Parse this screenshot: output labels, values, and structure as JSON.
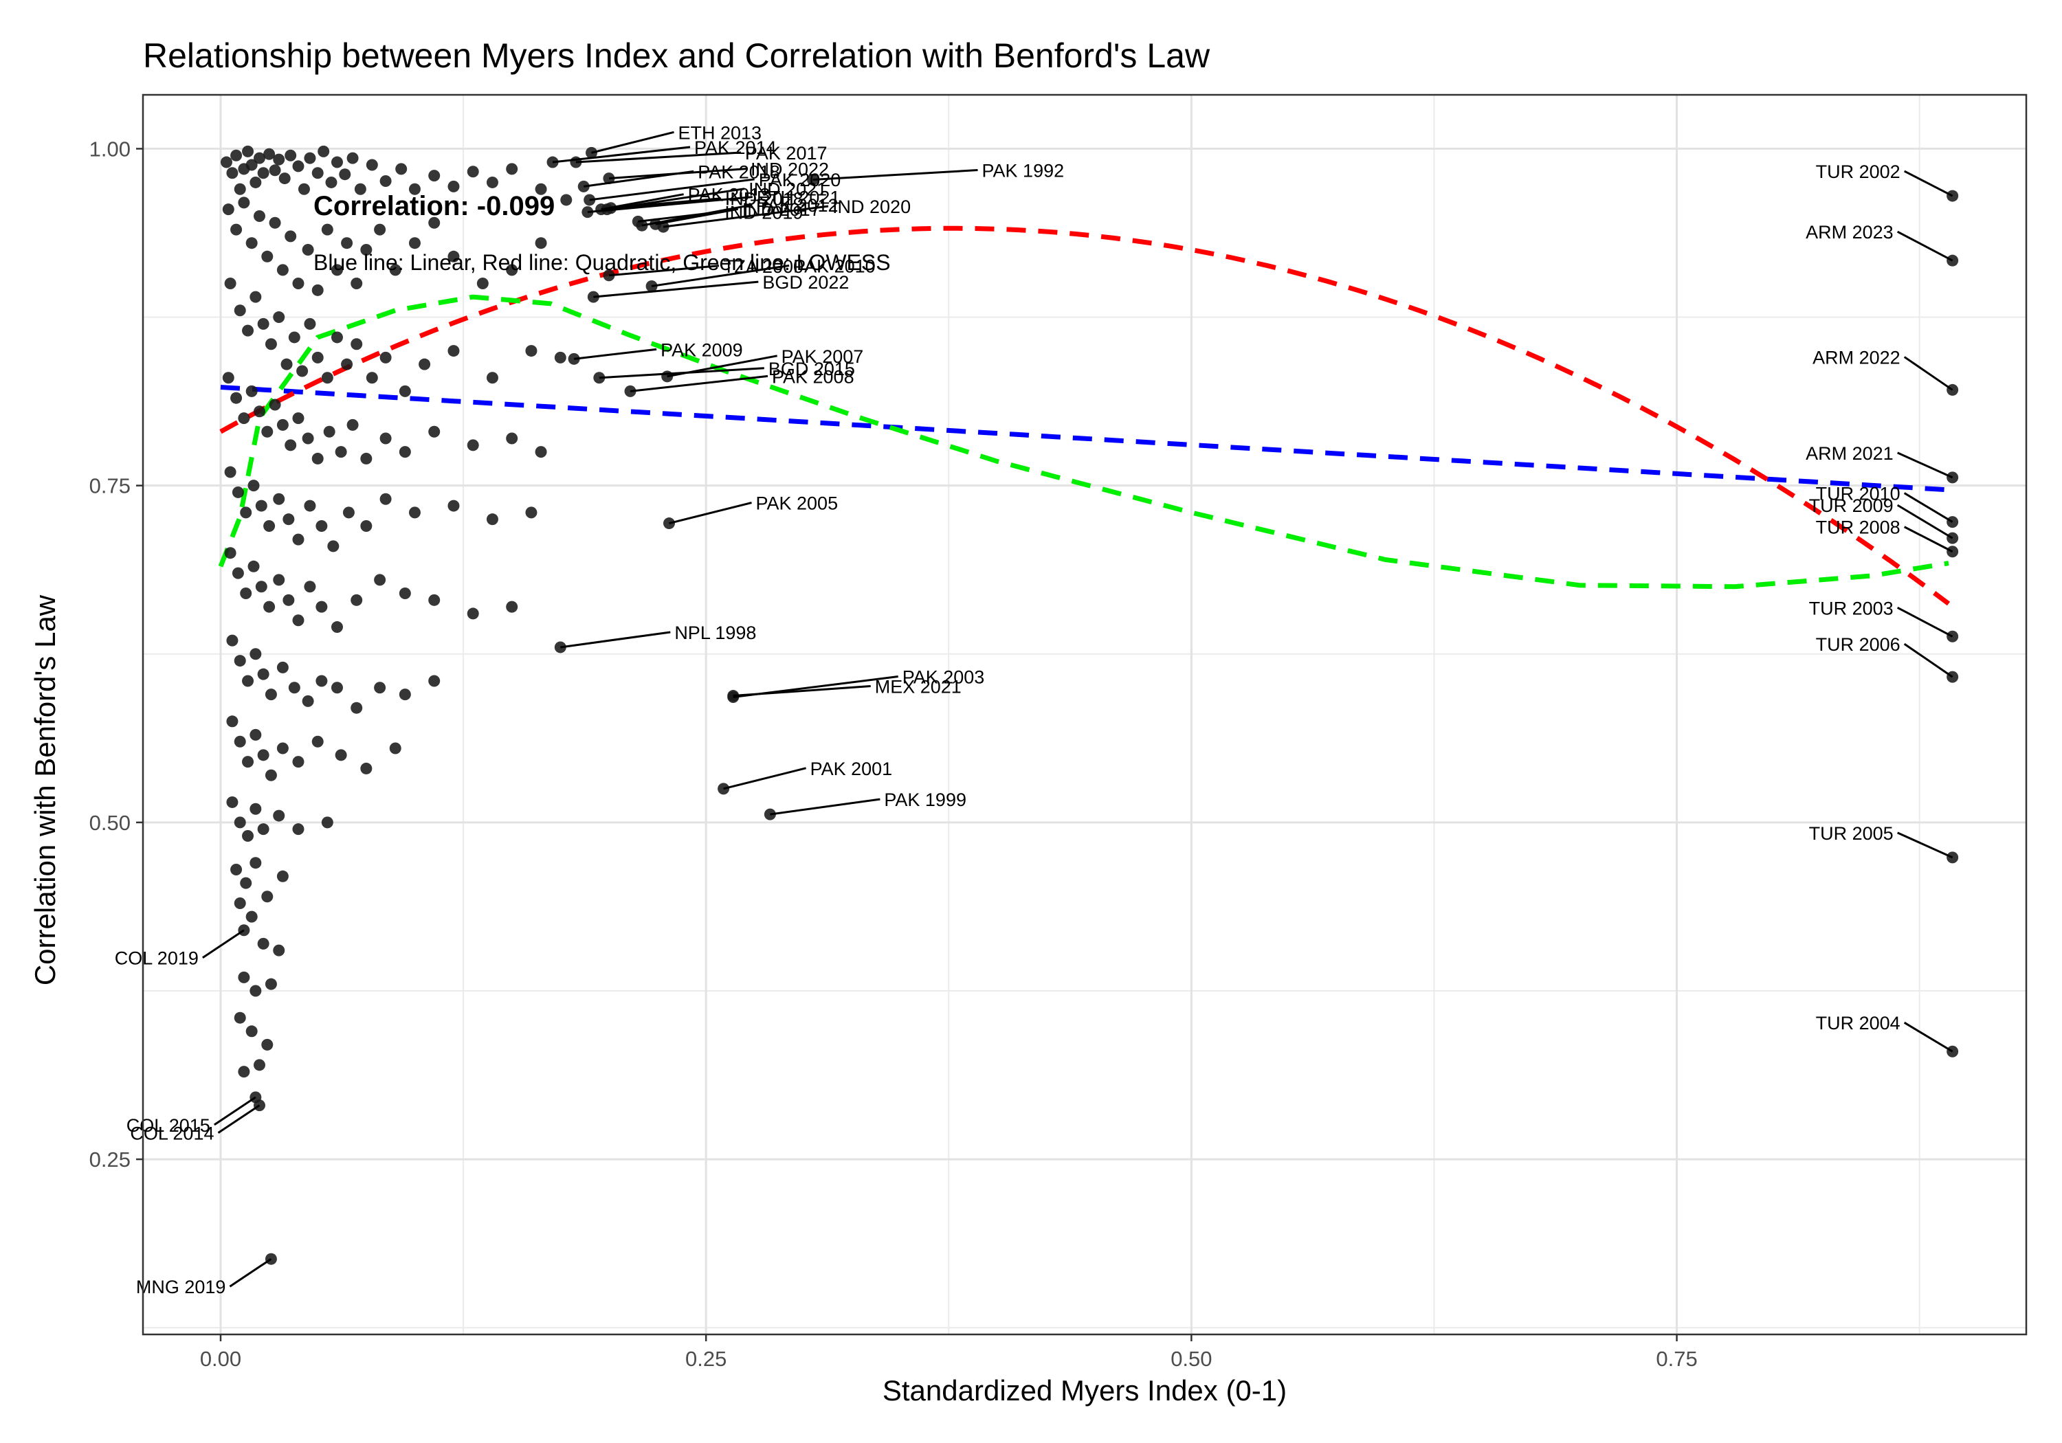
{
  "chart_data": {
    "type": "scatter",
    "title": "Relationship between Myers Index and Correlation with Benford's Law",
    "xlabel": "Standardized Myers Index (0-1)",
    "ylabel": "Correlation with Benford's Law",
    "xlim": [
      -0.04,
      0.93
    ],
    "ylim": [
      0.12,
      1.04
    ],
    "x_ticks": [
      0.0,
      0.25,
      0.5,
      0.75
    ],
    "x_tick_labels": [
      "0.00",
      "0.25",
      "0.50",
      "0.75"
    ],
    "y_ticks": [
      0.25,
      0.5,
      0.75,
      1.0
    ],
    "y_tick_labels": [
      "0.25",
      "0.50",
      "0.75",
      "1.00"
    ],
    "grid": true,
    "annotations": {
      "correlation": "Correlation: -0.099",
      "legend_note": "Blue line: Linear, Red line: Quadratic, Green line: LOWESS"
    },
    "colors": {
      "points": "#1a1a1a",
      "linear_fit": "#0000ff",
      "quadratic_fit": "#ff0000",
      "lowess_fit": "#00ee00",
      "grid": "#ebebeb",
      "panel_border": "#333333"
    },
    "labeled_points": [
      {
        "label": "TUR 2002",
        "x": 0.892,
        "y": 0.965
      },
      {
        "label": "ARM 2023",
        "x": 0.892,
        "y": 0.917
      },
      {
        "label": "ARM 2022",
        "x": 0.892,
        "y": 0.821
      },
      {
        "label": "ARM 2021",
        "x": 0.892,
        "y": 0.756
      },
      {
        "label": "TUR 2010",
        "x": 0.892,
        "y": 0.723
      },
      {
        "label": "TUR 2009",
        "x": 0.892,
        "y": 0.711
      },
      {
        "label": "TUR 2008",
        "x": 0.892,
        "y": 0.701
      },
      {
        "label": "TUR 2003",
        "x": 0.892,
        "y": 0.638
      },
      {
        "label": "TUR 2006",
        "x": 0.892,
        "y": 0.608
      },
      {
        "label": "TUR 2005",
        "x": 0.892,
        "y": 0.474
      },
      {
        "label": "TUR 2004",
        "x": 0.892,
        "y": 0.33
      },
      {
        "label": "PAK 1992",
        "x": 0.305,
        "y": 0.977
      },
      {
        "label": "PAK 2001",
        "x": 0.259,
        "y": 0.525
      },
      {
        "label": "PAK 1999",
        "x": 0.283,
        "y": 0.506
      },
      {
        "label": "MNG 2019",
        "x": 0.026,
        "y": 0.176
      },
      {
        "label": "IND 2020",
        "x": 0.228,
        "y": 0.942
      },
      {
        "label": "IND 2017",
        "x": 0.224,
        "y": 0.944
      },
      {
        "label": "IND 2018",
        "x": 0.201,
        "y": 0.956
      },
      {
        "label": "IND 2021",
        "x": 0.199,
        "y": 0.955
      },
      {
        "label": "ETH 2021",
        "x": 0.189,
        "y": 0.953
      },
      {
        "label": "IND 2019",
        "x": 0.215,
        "y": 0.946
      },
      {
        "label": "PAK 2012",
        "x": 0.217,
        "y": 0.943
      },
      {
        "label": "PAK 2014",
        "x": 0.171,
        "y": 0.99
      },
      {
        "label": "PAK 2017",
        "x": 0.183,
        "y": 0.99
      },
      {
        "label": "ETH 2013",
        "x": 0.191,
        "y": 0.997
      },
      {
        "label": "PAK 2018",
        "x": 0.187,
        "y": 0.972
      },
      {
        "label": "IND 2022",
        "x": 0.2,
        "y": 0.978
      },
      {
        "label": "PAK 2020",
        "x": 0.19,
        "y": 0.962
      },
      {
        "label": "PAK 2013",
        "x": 0.196,
        "y": 0.955
      },
      {
        "label": "TZA 2000",
        "x": 0.2,
        "y": 0.906
      },
      {
        "label": "PAK 2010",
        "x": 0.222,
        "y": 0.898
      },
      {
        "label": "BGD 2022",
        "x": 0.192,
        "y": 0.89
      },
      {
        "label": "PAK 2009",
        "x": 0.182,
        "y": 0.844
      },
      {
        "label": "PAK 2007",
        "x": 0.23,
        "y": 0.831
      },
      {
        "label": "PAK 2008",
        "x": 0.211,
        "y": 0.82
      },
      {
        "label": "BGD 2015",
        "x": 0.195,
        "y": 0.83
      },
      {
        "label": "PAK 2005",
        "x": 0.231,
        "y": 0.722
      },
      {
        "label": "NPL 1998",
        "x": 0.175,
        "y": 0.63
      },
      {
        "label": "MEX 2021",
        "x": 0.264,
        "y": 0.594
      },
      {
        "label": "PAK 2003",
        "x": 0.264,
        "y": 0.593
      },
      {
        "label": "COL 2019",
        "x": 0.012,
        "y": 0.42
      },
      {
        "label": "COL 2015",
        "x": 0.018,
        "y": 0.296
      },
      {
        "label": "COL 2014",
        "x": 0.02,
        "y": 0.29
      }
    ],
    "background_points": [
      [
        0.003,
        0.99
      ],
      [
        0.006,
        0.982
      ],
      [
        0.008,
        0.995
      ],
      [
        0.01,
        0.97
      ],
      [
        0.012,
        0.985
      ],
      [
        0.014,
        0.998
      ],
      [
        0.016,
        0.988
      ],
      [
        0.018,
        0.975
      ],
      [
        0.02,
        0.993
      ],
      [
        0.022,
        0.982
      ],
      [
        0.025,
        0.996
      ],
      [
        0.028,
        0.984
      ],
      [
        0.03,
        0.992
      ],
      [
        0.033,
        0.978
      ],
      [
        0.036,
        0.995
      ],
      [
        0.04,
        0.987
      ],
      [
        0.043,
        0.97
      ],
      [
        0.046,
        0.993
      ],
      [
        0.05,
        0.982
      ],
      [
        0.053,
        0.998
      ],
      [
        0.057,
        0.975
      ],
      [
        0.06,
        0.99
      ],
      [
        0.064,
        0.981
      ],
      [
        0.068,
        0.993
      ],
      [
        0.072,
        0.97
      ],
      [
        0.078,
        0.988
      ],
      [
        0.085,
        0.976
      ],
      [
        0.093,
        0.985
      ],
      [
        0.1,
        0.97
      ],
      [
        0.11,
        0.98
      ],
      [
        0.12,
        0.972
      ],
      [
        0.13,
        0.983
      ],
      [
        0.14,
        0.975
      ],
      [
        0.15,
        0.985
      ],
      [
        0.165,
        0.97
      ],
      [
        0.178,
        0.962
      ],
      [
        0.004,
        0.955
      ],
      [
        0.008,
        0.94
      ],
      [
        0.012,
        0.96
      ],
      [
        0.016,
        0.93
      ],
      [
        0.02,
        0.95
      ],
      [
        0.024,
        0.92
      ],
      [
        0.028,
        0.945
      ],
      [
        0.032,
        0.91
      ],
      [
        0.036,
        0.935
      ],
      [
        0.04,
        0.9
      ],
      [
        0.045,
        0.925
      ],
      [
        0.05,
        0.895
      ],
      [
        0.055,
        0.94
      ],
      [
        0.06,
        0.91
      ],
      [
        0.065,
        0.93
      ],
      [
        0.07,
        0.9
      ],
      [
        0.075,
        0.925
      ],
      [
        0.082,
        0.94
      ],
      [
        0.09,
        0.91
      ],
      [
        0.1,
        0.93
      ],
      [
        0.11,
        0.945
      ],
      [
        0.12,
        0.92
      ],
      [
        0.135,
        0.9
      ],
      [
        0.15,
        0.91
      ],
      [
        0.165,
        0.93
      ],
      [
        0.005,
        0.9
      ],
      [
        0.01,
        0.88
      ],
      [
        0.014,
        0.865
      ],
      [
        0.018,
        0.89
      ],
      [
        0.022,
        0.87
      ],
      [
        0.026,
        0.855
      ],
      [
        0.03,
        0.875
      ],
      [
        0.034,
        0.84
      ],
      [
        0.038,
        0.86
      ],
      [
        0.042,
        0.835
      ],
      [
        0.046,
        0.87
      ],
      [
        0.05,
        0.845
      ],
      [
        0.055,
        0.83
      ],
      [
        0.06,
        0.86
      ],
      [
        0.065,
        0.84
      ],
      [
        0.07,
        0.855
      ],
      [
        0.078,
        0.83
      ],
      [
        0.085,
        0.845
      ],
      [
        0.095,
        0.82
      ],
      [
        0.105,
        0.84
      ],
      [
        0.12,
        0.85
      ],
      [
        0.14,
        0.83
      ],
      [
        0.16,
        0.85
      ],
      [
        0.175,
        0.845
      ],
      [
        0.004,
        0.83
      ],
      [
        0.008,
        0.815
      ],
      [
        0.012,
        0.8
      ],
      [
        0.016,
        0.82
      ],
      [
        0.02,
        0.805
      ],
      [
        0.024,
        0.79
      ],
      [
        0.028,
        0.81
      ],
      [
        0.032,
        0.795
      ],
      [
        0.036,
        0.78
      ],
      [
        0.04,
        0.8
      ],
      [
        0.045,
        0.785
      ],
      [
        0.05,
        0.77
      ],
      [
        0.056,
        0.79
      ],
      [
        0.062,
        0.775
      ],
      [
        0.068,
        0.795
      ],
      [
        0.075,
        0.77
      ],
      [
        0.085,
        0.785
      ],
      [
        0.095,
        0.775
      ],
      [
        0.11,
        0.79
      ],
      [
        0.13,
        0.78
      ],
      [
        0.15,
        0.785
      ],
      [
        0.165,
        0.775
      ],
      [
        0.005,
        0.76
      ],
      [
        0.009,
        0.745
      ],
      [
        0.013,
        0.73
      ],
      [
        0.017,
        0.75
      ],
      [
        0.021,
        0.735
      ],
      [
        0.025,
        0.72
      ],
      [
        0.03,
        0.74
      ],
      [
        0.035,
        0.725
      ],
      [
        0.04,
        0.71
      ],
      [
        0.046,
        0.735
      ],
      [
        0.052,
        0.72
      ],
      [
        0.058,
        0.705
      ],
      [
        0.066,
        0.73
      ],
      [
        0.075,
        0.72
      ],
      [
        0.085,
        0.74
      ],
      [
        0.1,
        0.73
      ],
      [
        0.12,
        0.735
      ],
      [
        0.14,
        0.725
      ],
      [
        0.16,
        0.73
      ],
      [
        0.005,
        0.7
      ],
      [
        0.009,
        0.685
      ],
      [
        0.013,
        0.67
      ],
      [
        0.017,
        0.69
      ],
      [
        0.021,
        0.675
      ],
      [
        0.025,
        0.66
      ],
      [
        0.03,
        0.68
      ],
      [
        0.035,
        0.665
      ],
      [
        0.04,
        0.65
      ],
      [
        0.046,
        0.675
      ],
      [
        0.052,
        0.66
      ],
      [
        0.06,
        0.645
      ],
      [
        0.07,
        0.665
      ],
      [
        0.082,
        0.68
      ],
      [
        0.095,
        0.67
      ],
      [
        0.11,
        0.665
      ],
      [
        0.13,
        0.655
      ],
      [
        0.15,
        0.66
      ],
      [
        0.006,
        0.635
      ],
      [
        0.01,
        0.62
      ],
      [
        0.014,
        0.605
      ],
      [
        0.018,
        0.625
      ],
      [
        0.022,
        0.61
      ],
      [
        0.026,
        0.595
      ],
      [
        0.032,
        0.615
      ],
      [
        0.038,
        0.6
      ],
      [
        0.045,
        0.59
      ],
      [
        0.052,
        0.605
      ],
      [
        0.06,
        0.6
      ],
      [
        0.07,
        0.585
      ],
      [
        0.082,
        0.6
      ],
      [
        0.095,
        0.595
      ],
      [
        0.11,
        0.605
      ],
      [
        0.006,
        0.575
      ],
      [
        0.01,
        0.56
      ],
      [
        0.014,
        0.545
      ],
      [
        0.018,
        0.565
      ],
      [
        0.022,
        0.55
      ],
      [
        0.026,
        0.535
      ],
      [
        0.032,
        0.555
      ],
      [
        0.04,
        0.545
      ],
      [
        0.05,
        0.56
      ],
      [
        0.062,
        0.55
      ],
      [
        0.075,
        0.54
      ],
      [
        0.09,
        0.555
      ],
      [
        0.006,
        0.515
      ],
      [
        0.01,
        0.5
      ],
      [
        0.014,
        0.49
      ],
      [
        0.018,
        0.51
      ],
      [
        0.022,
        0.495
      ],
      [
        0.03,
        0.505
      ],
      [
        0.04,
        0.495
      ],
      [
        0.055,
        0.5
      ],
      [
        0.008,
        0.465
      ],
      [
        0.013,
        0.455
      ],
      [
        0.018,
        0.47
      ],
      [
        0.024,
        0.445
      ],
      [
        0.032,
        0.46
      ],
      [
        0.01,
        0.44
      ],
      [
        0.016,
        0.43
      ],
      [
        0.022,
        0.41
      ],
      [
        0.03,
        0.405
      ],
      [
        0.012,
        0.385
      ],
      [
        0.018,
        0.375
      ],
      [
        0.026,
        0.38
      ],
      [
        0.01,
        0.355
      ],
      [
        0.016,
        0.345
      ],
      [
        0.024,
        0.335
      ],
      [
        0.012,
        0.315
      ],
      [
        0.02,
        0.32
      ]
    ]
  }
}
